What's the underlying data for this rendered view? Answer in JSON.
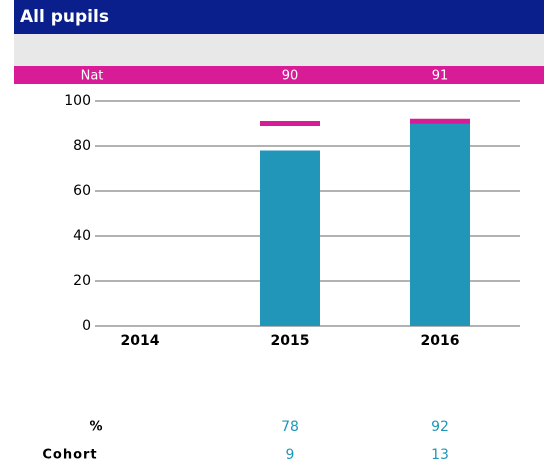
{
  "chart_data": {
    "type": "bar",
    "title": "All pupils",
    "categories": [
      "2014",
      "2015",
      "2016"
    ],
    "series": [
      {
        "name": "%",
        "color": "#2196b9",
        "values": [
          null,
          78,
          92
        ]
      }
    ],
    "national": {
      "name": "Nat",
      "color": "#d81b96",
      "values": [
        null,
        90,
        91
      ]
    },
    "cohort": {
      "name": "Cohort",
      "values": [
        null,
        9,
        13
      ]
    },
    "ylim": [
      0,
      100
    ],
    "yticks": [
      0,
      20,
      40,
      60,
      80,
      100
    ],
    "grid": true
  }
}
